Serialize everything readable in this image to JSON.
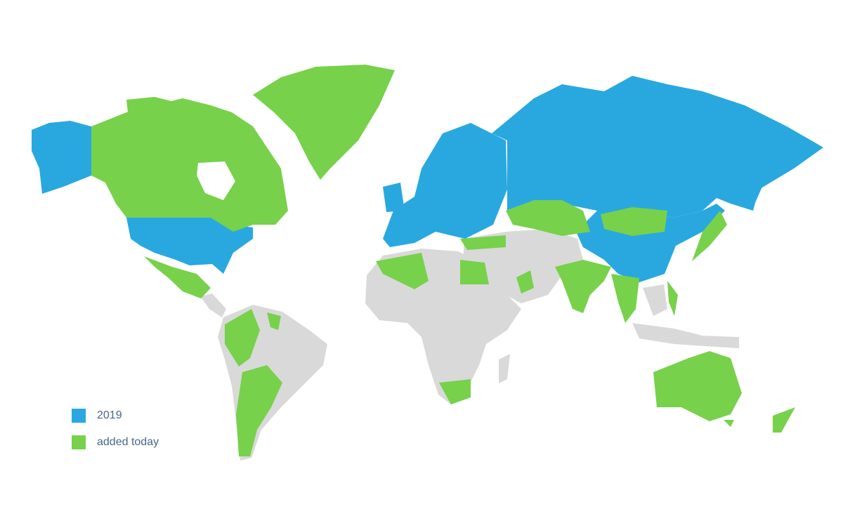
{
  "map": {
    "colors": {
      "2019": "#29a8e0",
      "added_today": "#77d14a",
      "other": "#d9d9d9"
    },
    "legend": [
      {
        "label": "2019",
        "color": "#29a8e0"
      },
      {
        "label": "added today",
        "color": "#77d14a"
      }
    ],
    "regions_2019": [
      "Alaska",
      "United States",
      "Europe",
      "Russia",
      "China"
    ],
    "regions_added_today": [
      "Canada",
      "Greenland",
      "Mexico",
      "Colombia",
      "Ecuador",
      "Peru",
      "Chile",
      "Argentina",
      "Guyana",
      "Algeria",
      "Egypt",
      "South Africa",
      "Turkey",
      "Kazakhstan",
      "Mongolia",
      "India",
      "Oman",
      "Thailand",
      "Vietnam",
      "Japan",
      "Philippines",
      "Australia",
      "New Zealand"
    ]
  }
}
